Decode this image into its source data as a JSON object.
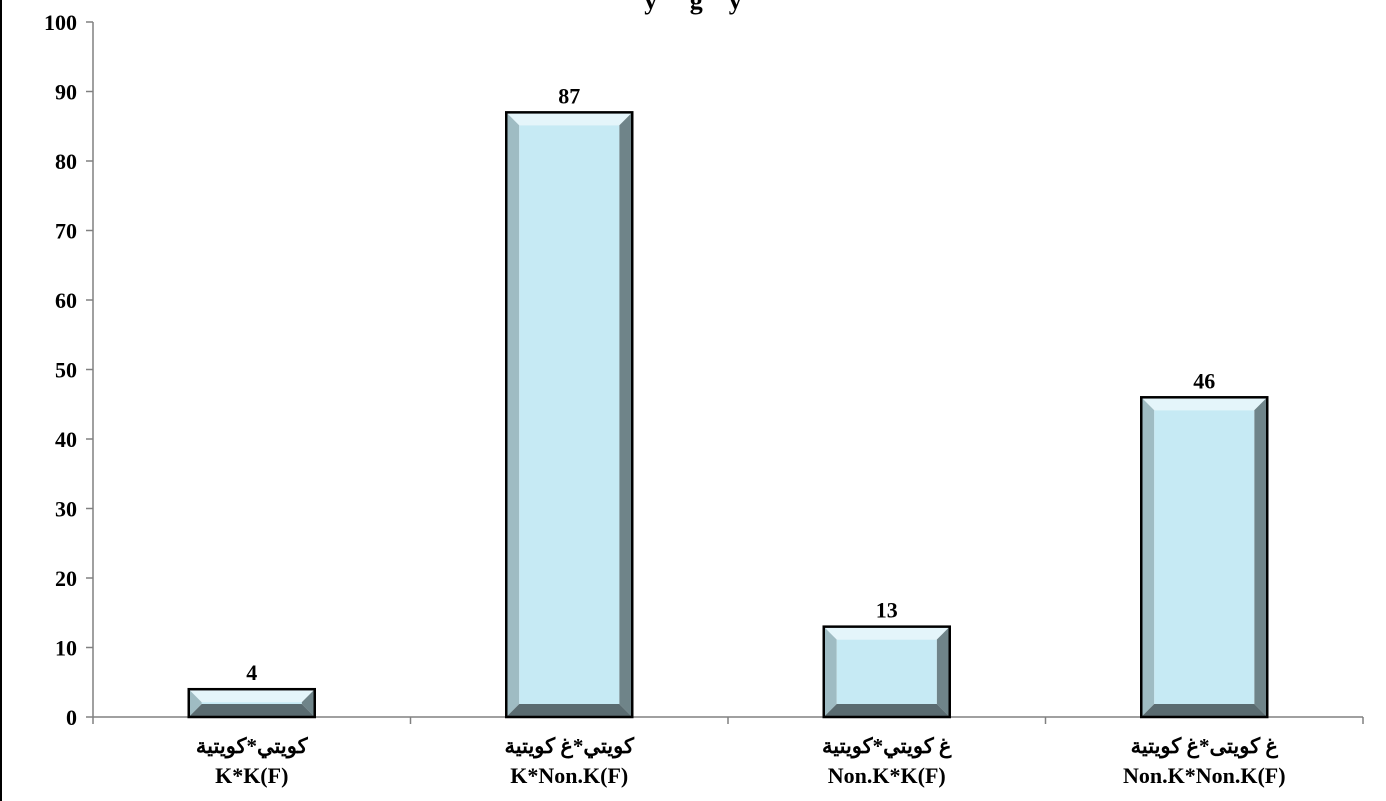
{
  "chart_data": {
    "type": "bar",
    "title": "y     g    y",
    "categories": [
      [
        "كويتي*كويتية",
        "K*K(F)"
      ],
      [
        "كويتي*غ كويتية",
        "K*Non.K(F)"
      ],
      [
        "غ كويتي*كويتية",
        "Non.K*K(F)"
      ],
      [
        "غ كويتى*غ كويتية",
        "Non.K*Non.K(F)"
      ]
    ],
    "values": [
      4,
      87,
      13,
      46
    ],
    "data_labels": [
      "4",
      "87",
      "13",
      "46"
    ],
    "yticks": [
      0,
      10,
      20,
      30,
      40,
      50,
      60,
      70,
      80,
      90,
      100
    ],
    "ylim": [
      0,
      100
    ],
    "xlabel": "",
    "ylabel": "",
    "grid": false,
    "legend": "none",
    "colors": {
      "bar_face": "#c6eaf4",
      "bar_bevel_top": "#e4f5fa",
      "bar_bevel_left": "#9fbcc3",
      "bar_bevel_right": "#6f8489",
      "bar_bevel_bottom": "#5a6b70",
      "bar_outline": "#000000",
      "axis": "#808080"
    }
  }
}
